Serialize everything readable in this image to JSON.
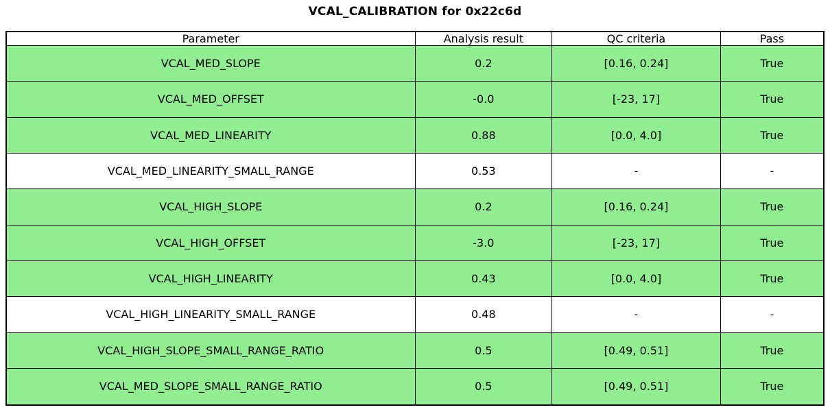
{
  "title": "VCAL_CALIBRATION for 0x22c6d",
  "colors": {
    "pass_green": "#90EE90",
    "neutral_white": "#FFFFFF",
    "border_black": "#000000"
  },
  "chart_data": {
    "type": "table",
    "title": "VCAL_CALIBRATION for 0x22c6d",
    "columns": [
      "Parameter",
      "Analysis result",
      "QC criteria",
      "Pass"
    ],
    "rows": [
      {
        "parameter": "VCAL_MED_SLOPE",
        "analysis_result": "0.2",
        "qc_criteria": "[0.16, 0.24]",
        "pass": "True",
        "highlight": true
      },
      {
        "parameter": "VCAL_MED_OFFSET",
        "analysis_result": "-0.0",
        "qc_criteria": "[-23, 17]",
        "pass": "True",
        "highlight": true
      },
      {
        "parameter": "VCAL_MED_LINEARITY",
        "analysis_result": "0.88",
        "qc_criteria": "[0.0, 4.0]",
        "pass": "True",
        "highlight": true
      },
      {
        "parameter": "VCAL_MED_LINEARITY_SMALL_RANGE",
        "analysis_result": "0.53",
        "qc_criteria": "-",
        "pass": "-",
        "highlight": false
      },
      {
        "parameter": "VCAL_HIGH_SLOPE",
        "analysis_result": "0.2",
        "qc_criteria": "[0.16, 0.24]",
        "pass": "True",
        "highlight": true
      },
      {
        "parameter": "VCAL_HIGH_OFFSET",
        "analysis_result": "-3.0",
        "qc_criteria": "[-23, 17]",
        "pass": "True",
        "highlight": true
      },
      {
        "parameter": "VCAL_HIGH_LINEARITY",
        "analysis_result": "0.43",
        "qc_criteria": "[0.0, 4.0]",
        "pass": "True",
        "highlight": true
      },
      {
        "parameter": "VCAL_HIGH_LINEARITY_SMALL_RANGE",
        "analysis_result": "0.48",
        "qc_criteria": "-",
        "pass": "-",
        "highlight": false
      },
      {
        "parameter": "VCAL_HIGH_SLOPE_SMALL_RANGE_RATIO",
        "analysis_result": "0.5",
        "qc_criteria": "[0.49, 0.51]",
        "pass": "True",
        "highlight": true
      },
      {
        "parameter": "VCAL_MED_SLOPE_SMALL_RANGE_RATIO",
        "analysis_result": "0.5",
        "qc_criteria": "[0.49, 0.51]",
        "pass": "True",
        "highlight": true
      }
    ],
    "layout": {
      "column_width_percents": [
        50.0,
        16.75,
        20.6,
        12.65
      ],
      "pass_row_color": "#90EE90",
      "neutral_row_color": "#FFFFFF"
    }
  }
}
